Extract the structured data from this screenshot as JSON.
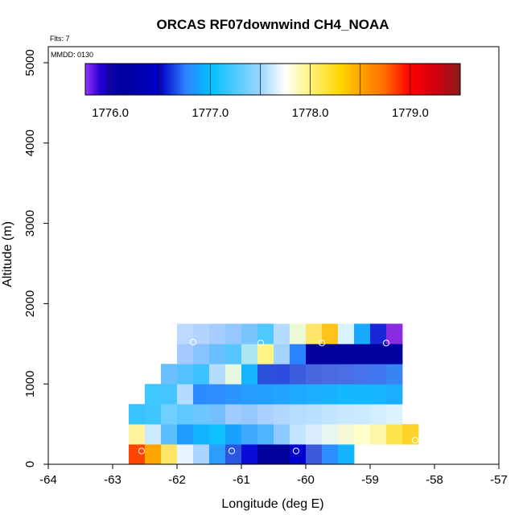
{
  "chart_data": {
    "type": "heatmap",
    "title": "ORCAS RF07downwind CH4_NOAA",
    "xlabel": "Longitude (deg E)",
    "ylabel": "Altitude (m)",
    "xlim": [
      -64,
      -57
    ],
    "ylim": [
      0,
      5200
    ],
    "x_ticks": [
      -64,
      -63,
      -62,
      -61,
      -60,
      -59,
      -58,
      -57
    ],
    "y_ticks": [
      0,
      1000,
      2000,
      3000,
      4000,
      5000
    ],
    "annotations": {
      "flights": "Flts: 7",
      "mmdd": "MMDD: 0130"
    },
    "colorbar": {
      "range": [
        1775.75,
        1779.5
      ],
      "ticks": [
        1776.0,
        1777.0,
        1778.0,
        1779.0
      ],
      "tick_labels": [
        "1776.0",
        "1777.0",
        "1778.0",
        "1779.0"
      ],
      "stops": [
        {
          "v": 1775.75,
          "c": "#9b30ff"
        },
        {
          "v": 1775.9,
          "c": "#2000d0"
        },
        {
          "v": 1776.1,
          "c": "#00009a"
        },
        {
          "v": 1776.5,
          "c": "#0000c8"
        },
        {
          "v": 1776.75,
          "c": "#2f7fff"
        },
        {
          "v": 1777.0,
          "c": "#00bfff"
        },
        {
          "v": 1777.5,
          "c": "#9bd6ff"
        },
        {
          "v": 1777.75,
          "c": "#ffffff"
        },
        {
          "v": 1778.0,
          "c": "#fff27a"
        },
        {
          "v": 1778.3,
          "c": "#ffd700"
        },
        {
          "v": 1778.5,
          "c": "#ffa500"
        },
        {
          "v": 1778.75,
          "c": "#ff6a00"
        },
        {
          "v": 1779.0,
          "c": "#ff0000"
        },
        {
          "v": 1779.25,
          "c": "#d00010"
        },
        {
          "v": 1779.5,
          "c": "#8b1a1a"
        }
      ]
    },
    "cell_size": {
      "dlon": 0.25,
      "dalt": 250
    },
    "rows": [
      {
        "alt": 0,
        "lon0": -62.75,
        "colors": [
          "#ff4500",
          "#ffa500",
          "#ffe566",
          "#e8f4ff",
          "#a8d4ff",
          "#2d9cff",
          "#2b56e0",
          "#0b0bd8",
          "#00009c",
          "#00009a",
          "#0000d0",
          "#3b5bdb",
          "#2d8fff",
          "#14b4ff"
        ]
      },
      {
        "alt": 250,
        "lon0": -62.75,
        "colors": [
          "#fff3a0",
          "#cce9ff",
          "#5cc0ff",
          "#1e9cff",
          "#0fb3ff",
          "#0fbfff",
          "#1aa0ff",
          "#3fa8ff",
          "#4db5ff",
          "#8ec9ff",
          "#c2e4ff",
          "#d9edff",
          "#e8f6f0",
          "#f6f9d6",
          "#ffffcc",
          "#fff5a8",
          "#ffe34d",
          "#ffd42a"
        ]
      },
      {
        "alt": 500,
        "lon0": -62.75,
        "colors": [
          "#35c4ff",
          "#3fc6ff",
          "#6fcfff",
          "#5ec8ff",
          "#6cc6ff",
          "#74bfff",
          "#a0ccff",
          "#96c8ff",
          "#a9d0ff",
          "#b3d7ff",
          "#b6dcff",
          "#b9e1ff",
          "#c2e5ff",
          "#c8e9ff",
          "#cceaff",
          "#d4eeff",
          "#dcf4ff"
        ]
      },
      {
        "alt": 750,
        "lon0": -62.5,
        "colors": [
          "#3fc8ff",
          "#45c5ff",
          "#b3dcff",
          "#2b8bff",
          "#2a8eff",
          "#2a95ff",
          "#269cff",
          "#239fff",
          "#22a3ff",
          "#1fa8ff",
          "#1cadff",
          "#18b2ff",
          "#14b8ff",
          "#14b8ff",
          "#18b4ff",
          "#1cadff"
        ]
      },
      {
        "alt": 1000,
        "lon0": -62.25,
        "colors": [
          "#6bc0ff",
          "#54c2ff",
          "#3cc3ff",
          "#b5dcff",
          "#e6f7e0",
          "#15b5ff",
          "#2b50dc",
          "#2d4ce0",
          "#3a5cdd",
          "#4966e0",
          "#4c6ae2",
          "#4a6ee6",
          "#4873ea",
          "#3f78ee",
          "#3884f2"
        ]
      },
      {
        "alt": 1250,
        "lon0": -62.0,
        "colors": [
          "#a5c9ff",
          "#89c3ff",
          "#6cbfff",
          "#56c6ff",
          "#ade5f2",
          "#fff587",
          "#a4d3ff",
          "#2a84ff",
          "#00009c",
          "#00009c",
          "#00009c",
          "#00009c",
          "#00009c",
          "#00009c"
        ]
      },
      {
        "alt": 1500,
        "lon0": -62.0,
        "colors": [
          "#bcdaff",
          "#b2d4ff",
          "#a6cdff",
          "#96c8ff",
          "#7bc5ff",
          "#4ec8ff",
          "#b5dcff",
          "#ecf9d6",
          "#ffe66b",
          "#ffc41a",
          "#d7f3ff",
          "#1aa9ff",
          "#1928d6",
          "#8a2be2"
        ]
      }
    ],
    "markers": [
      {
        "lon": -62.55,
        "alt": 165
      },
      {
        "lon": -61.15,
        "alt": 165
      },
      {
        "lon": -60.15,
        "alt": 165
      },
      {
        "lon": -59.15,
        "alt": 165
      },
      {
        "lon": -58.3,
        "alt": 300
      },
      {
        "lon": -62.8,
        "alt": 740
      },
      {
        "lon": -61.75,
        "alt": 1520
      },
      {
        "lon": -60.7,
        "alt": 1510
      },
      {
        "lon": -59.75,
        "alt": 1510
      },
      {
        "lon": -58.75,
        "alt": 1510
      }
    ]
  }
}
